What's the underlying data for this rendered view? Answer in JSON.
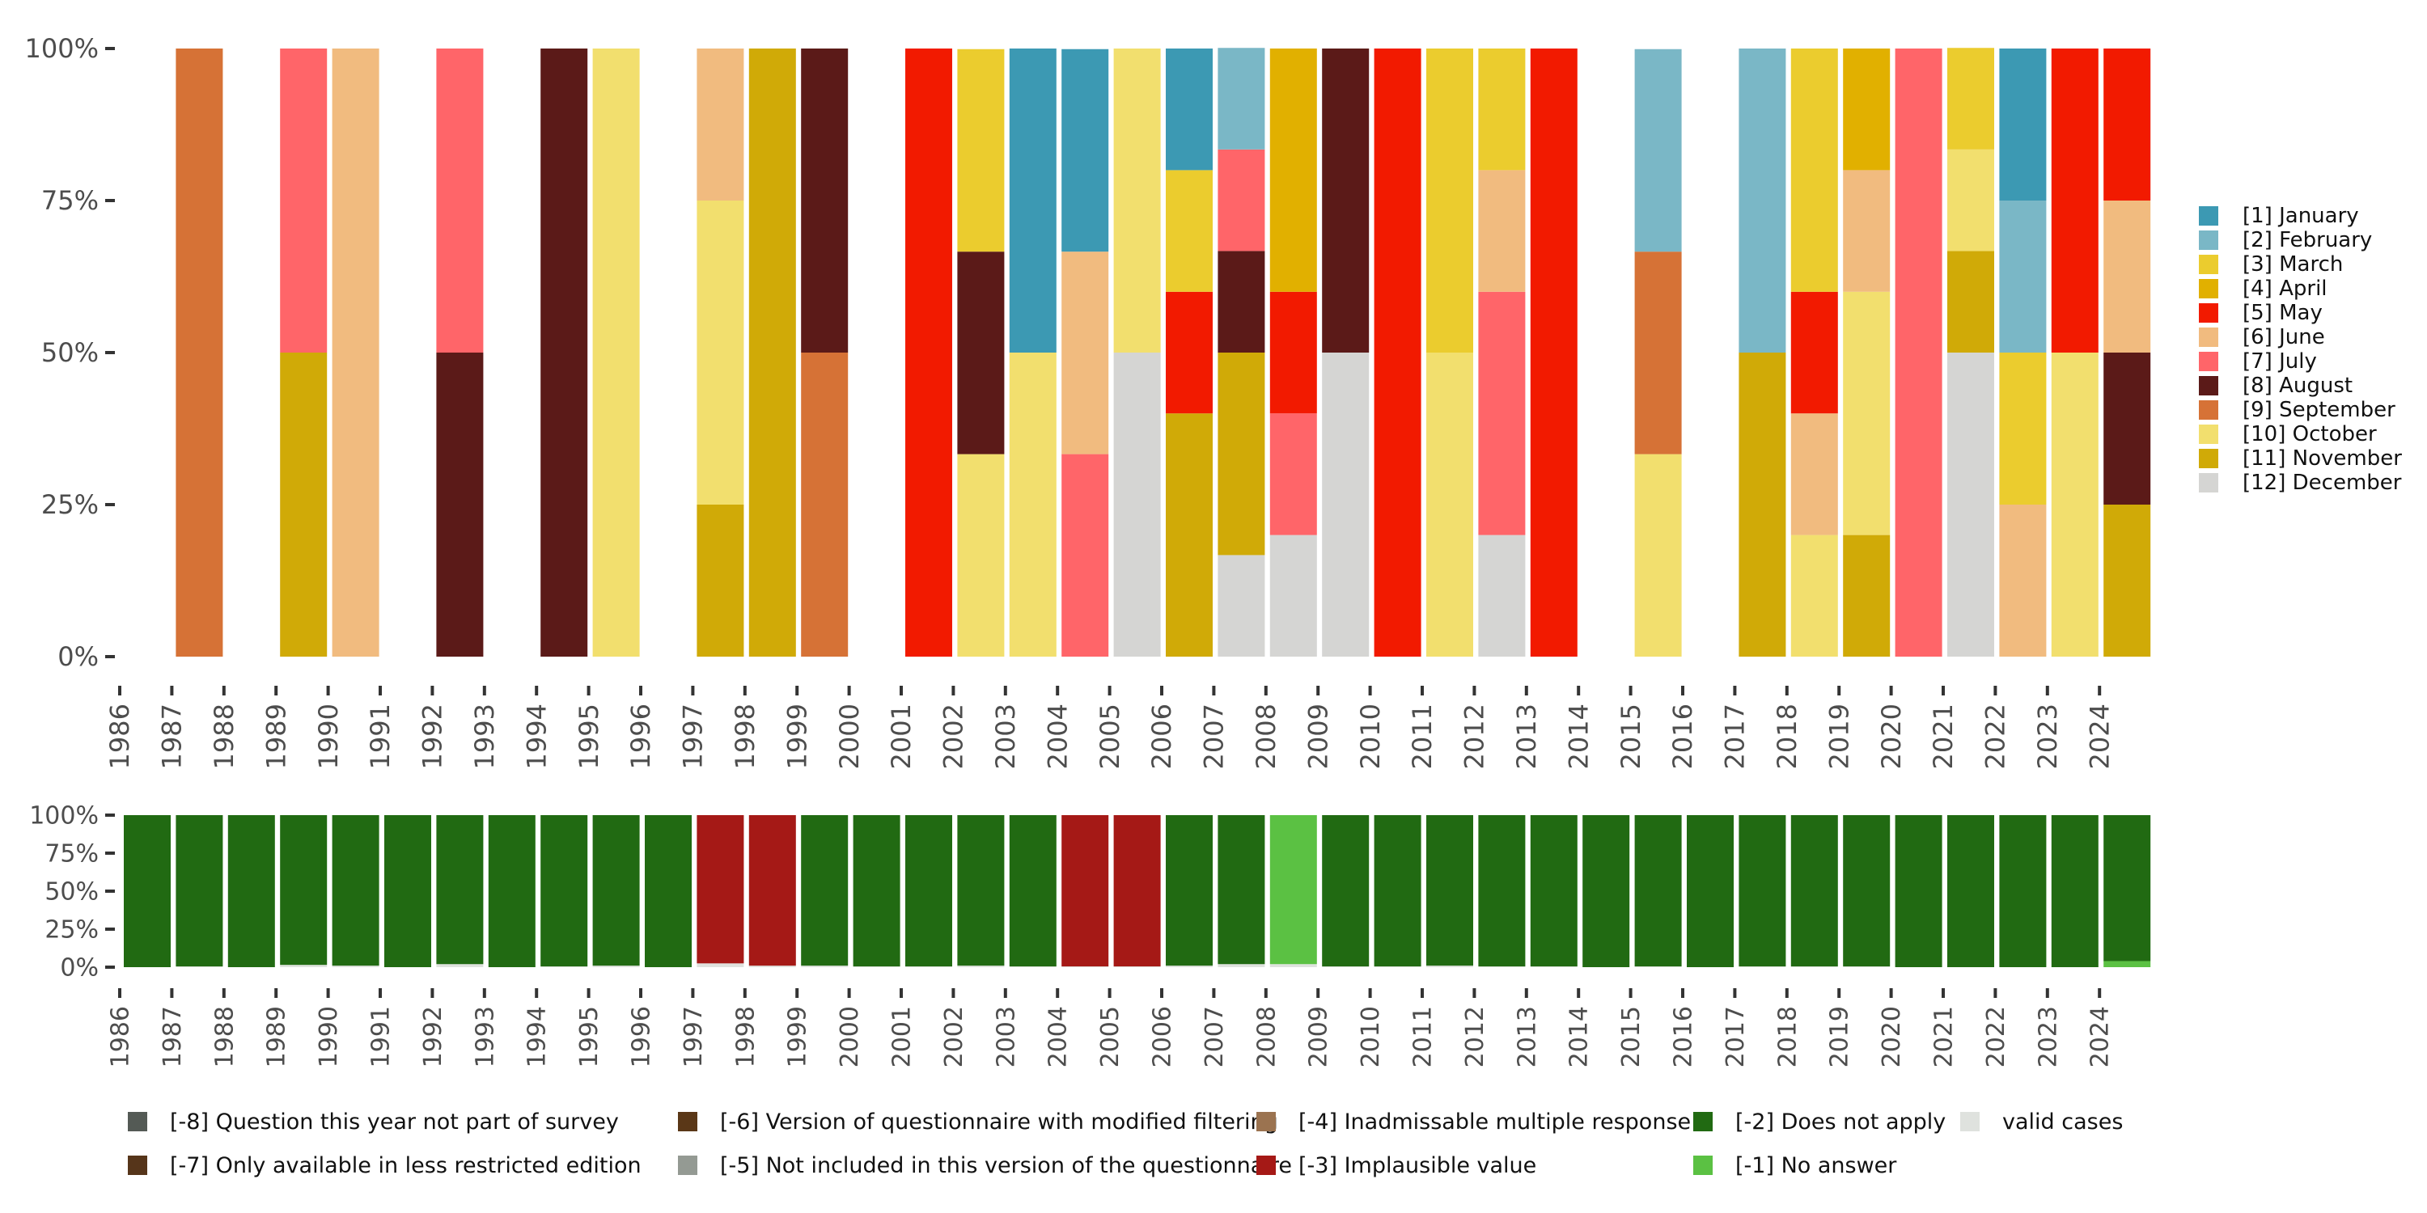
{
  "chart_data": [
    {
      "type": "bar",
      "stacked": true,
      "normalized": true,
      "title": "",
      "xlabel": "",
      "ylabel": "",
      "ylim": [
        0,
        100
      ],
      "y_ticks": [
        "0%",
        "25%",
        "50%",
        "75%",
        "100%"
      ],
      "y_tick_values": [
        0,
        25,
        50,
        75,
        100
      ],
      "categories": [
        "1986",
        "1987",
        "1988",
        "1989",
        "1990",
        "1991",
        "1992",
        "1993",
        "1994",
        "1995",
        "1996",
        "1997",
        "1998",
        "1999",
        "2000",
        "2001",
        "2002",
        "2003",
        "2004",
        "2005",
        "2006",
        "2007",
        "2008",
        "2009",
        "2010",
        "2011",
        "2012",
        "2013",
        "2014",
        "2015",
        "2016",
        "2017",
        "2018",
        "2019",
        "2020",
        "2021",
        "2022",
        "2023",
        "2024"
      ],
      "legend_position": "right",
      "series": [
        {
          "name": "[1] January",
          "color": "#3C99B3",
          "values": [
            0,
            0,
            0,
            0,
            0,
            0,
            0,
            0,
            0,
            0,
            0,
            0,
            0,
            0,
            0,
            0,
            0,
            50,
            33.3,
            0,
            20,
            0,
            0,
            0,
            0,
            0,
            0,
            0,
            0,
            0,
            0,
            0,
            0,
            0,
            0,
            0,
            25,
            0,
            0
          ]
        },
        {
          "name": "[2] February",
          "color": "#7AB7C6",
          "values": [
            0,
            0,
            0,
            0,
            0,
            0,
            0,
            0,
            0,
            0,
            0,
            0,
            0,
            0,
            0,
            0,
            0,
            0,
            0,
            0,
            0,
            16.7,
            0,
            0,
            0,
            0,
            0,
            0,
            0,
            33.3,
            0,
            50,
            0,
            0,
            0,
            0,
            25,
            0,
            0
          ]
        },
        {
          "name": "[3] March",
          "color": "#EBCC2E",
          "values": [
            0,
            0,
            0,
            0,
            0,
            0,
            0,
            0,
            0,
            0,
            0,
            0,
            0,
            0,
            0,
            0,
            33.3,
            0,
            0,
            0,
            20,
            0,
            0,
            0,
            0,
            50,
            20,
            0,
            0,
            0,
            0,
            0,
            40,
            0,
            0,
            16.7,
            25,
            0,
            0
          ]
        },
        {
          "name": "[4] April",
          "color": "#E1B000",
          "values": [
            0,
            0,
            0,
            0,
            0,
            0,
            0,
            0,
            0,
            0,
            0,
            0,
            0,
            0,
            0,
            0,
            0,
            0,
            0,
            0,
            0,
            0,
            40,
            0,
            0,
            0,
            0,
            0,
            0,
            0,
            0,
            0,
            0,
            20,
            0,
            0,
            0,
            0,
            0
          ]
        },
        {
          "name": "[5] May",
          "color": "#F21A00",
          "values": [
            0,
            0,
            0,
            0,
            0,
            0,
            0,
            0,
            0,
            0,
            0,
            0,
            0,
            0,
            0,
            100,
            0,
            0,
            0,
            0,
            20,
            0,
            20,
            0,
            100,
            0,
            0,
            100,
            0,
            0,
            0,
            0,
            20,
            0,
            0,
            0,
            0,
            50,
            25
          ]
        },
        {
          "name": "[6] June",
          "color": "#F1BB7F",
          "values": [
            0,
            0,
            0,
            0,
            100,
            0,
            0,
            0,
            0,
            0,
            0,
            25,
            0,
            0,
            0,
            0,
            0,
            0,
            33.3,
            0,
            0,
            0,
            0,
            0,
            0,
            0,
            20,
            0,
            0,
            0,
            0,
            0,
            20,
            20,
            0,
            0,
            25,
            0,
            25
          ]
        },
        {
          "name": "[7] July",
          "color": "#FF6569",
          "values": [
            0,
            0,
            0,
            50,
            0,
            0,
            50,
            0,
            0,
            0,
            0,
            0,
            0,
            0,
            0,
            0,
            0,
            0,
            33.3,
            0,
            0,
            16.7,
            20,
            0,
            0,
            0,
            40,
            0,
            0,
            0,
            0,
            0,
            0,
            0,
            100,
            0,
            0,
            0,
            0
          ]
        },
        {
          "name": "[8] August",
          "color": "#5B1A18",
          "values": [
            0,
            0,
            0,
            0,
            0,
            0,
            50,
            0,
            100,
            0,
            0,
            0,
            0,
            50,
            0,
            0,
            33.3,
            0,
            0,
            0,
            0,
            16.7,
            0,
            50,
            0,
            0,
            0,
            0,
            0,
            0,
            0,
            0,
            0,
            0,
            0,
            0,
            0,
            0,
            25
          ]
        },
        {
          "name": "[9] September",
          "color": "#D67236",
          "values": [
            0,
            100,
            0,
            0,
            0,
            0,
            0,
            0,
            0,
            0,
            0,
            0,
            0,
            50,
            0,
            0,
            0,
            0,
            0,
            0,
            0,
            0,
            0,
            0,
            0,
            0,
            0,
            0,
            0,
            33.3,
            0,
            0,
            0,
            0,
            0,
            0,
            0,
            0,
            0
          ]
        },
        {
          "name": "[10] October",
          "color": "#F2DF6E",
          "values": [
            0,
            0,
            0,
            0,
            0,
            0,
            0,
            0,
            0,
            100,
            0,
            50,
            0,
            0,
            0,
            0,
            33.3,
            50,
            0,
            50,
            0,
            0,
            0,
            0,
            0,
            50,
            0,
            0,
            0,
            33.3,
            0,
            0,
            20,
            40,
            0,
            16.7,
            0,
            50,
            0
          ]
        },
        {
          "name": "[11] November",
          "color": "#D0AA07",
          "values": [
            0,
            0,
            0,
            50,
            0,
            0,
            0,
            0,
            0,
            0,
            0,
            25,
            100,
            0,
            0,
            0,
            0,
            0,
            0,
            0,
            40,
            33.3,
            0,
            0,
            0,
            0,
            0,
            0,
            0,
            0,
            0,
            50,
            0,
            20,
            0,
            16.7,
            0,
            0,
            25
          ]
        },
        {
          "name": "[12] December",
          "color": "#D5D5D3",
          "values": [
            0,
            0,
            0,
            0,
            0,
            0,
            0,
            0,
            0,
            0,
            0,
            0,
            0,
            0,
            0,
            0,
            0,
            0,
            0,
            50,
            0,
            16.7,
            20,
            50,
            0,
            0,
            20,
            0,
            0,
            0,
            0,
            0,
            0,
            0,
            0,
            50,
            0,
            0,
            0
          ]
        }
      ]
    },
    {
      "type": "bar",
      "stacked": true,
      "normalized": true,
      "title": "",
      "xlabel": "",
      "ylabel": "",
      "ylim": [
        0,
        100
      ],
      "y_ticks": [
        "0%",
        "25%",
        "50%",
        "75%",
        "100%"
      ],
      "y_tick_values": [
        0,
        25,
        50,
        75,
        100
      ],
      "categories": [
        "1986",
        "1987",
        "1988",
        "1989",
        "1990",
        "1991",
        "1992",
        "1993",
        "1994",
        "1995",
        "1996",
        "1997",
        "1998",
        "1999",
        "2000",
        "2001",
        "2002",
        "2003",
        "2004",
        "2005",
        "2006",
        "2007",
        "2008",
        "2009",
        "2010",
        "2011",
        "2012",
        "2013",
        "2014",
        "2015",
        "2016",
        "2017",
        "2018",
        "2019",
        "2020",
        "2021",
        "2022",
        "2023",
        "2024"
      ],
      "legend_position": "bottom",
      "series": [
        {
          "name": "valid cases",
          "color": "#DFE2DE",
          "values": [
            0,
            0.5,
            0,
            1.5,
            1,
            0,
            2,
            0,
            0.5,
            1,
            0,
            2.5,
            1,
            1,
            0.5,
            0.5,
            1,
            0.5,
            0.5,
            0.5,
            1,
            2,
            2,
            0.5,
            0.5,
            1,
            0.5,
            0.5,
            0,
            0.5,
            0,
            0.5,
            0.5,
            0.5,
            0,
            0,
            0,
            0,
            0
          ]
        },
        {
          "name": "[-1] No answer",
          "color": "#5BC143",
          "values": [
            0,
            0,
            0,
            0,
            0,
            0,
            0,
            0,
            0,
            0,
            0,
            0,
            0,
            0,
            0,
            0,
            0,
            0,
            0,
            0,
            0,
            0,
            98,
            0,
            0,
            0,
            0,
            0,
            0,
            0,
            0,
            0,
            0,
            0,
            0,
            0,
            0,
            0,
            4
          ]
        },
        {
          "name": "[-2] Does not apply",
          "color": "#216A12",
          "values": [
            100,
            99.5,
            100,
            98.5,
            99,
            100,
            98,
            100,
            99.5,
            99,
            100,
            0,
            0,
            99,
            99.5,
            99.5,
            99,
            99.5,
            0,
            0,
            99,
            98,
            0,
            99.5,
            99.5,
            99,
            99.5,
            99.5,
            100,
            99.5,
            100,
            99.5,
            99.5,
            99.5,
            100,
            100,
            100,
            100,
            96
          ]
        },
        {
          "name": "[-3] Implausible value",
          "color": "#A51916",
          "values": [
            0,
            0,
            0,
            0,
            0,
            0,
            0,
            0,
            0,
            0,
            0,
            97.5,
            99,
            0,
            0,
            0,
            0,
            0,
            99.5,
            99.5,
            0,
            0,
            0,
            0,
            0,
            0,
            0,
            0,
            0,
            0,
            0,
            0,
            0,
            0,
            0,
            0,
            0,
            0,
            0
          ]
        }
      ],
      "legend": [
        {
          "name": "[-8] Question this year not part of survey",
          "color": "#545A55"
        },
        {
          "name": "[-7] Only available in less restricted edition",
          "color": "#56351A"
        },
        {
          "name": "[-6] Version of questionnaire with modified filtering",
          "color": "#5A3717"
        },
        {
          "name": "[-5] Not included in this version of the questionnaire",
          "color": "#949A93"
        },
        {
          "name": "[-4] Inadmissable multiple response",
          "color": "#9B7350"
        },
        {
          "name": "[-3] Implausible value",
          "color": "#A51916"
        },
        {
          "name": "[-2] Does not apply",
          "color": "#216A12"
        },
        {
          "name": "[-1] No answer",
          "color": "#5BC143"
        },
        {
          "name": "valid cases",
          "color": "#DFE2DE"
        }
      ]
    }
  ]
}
